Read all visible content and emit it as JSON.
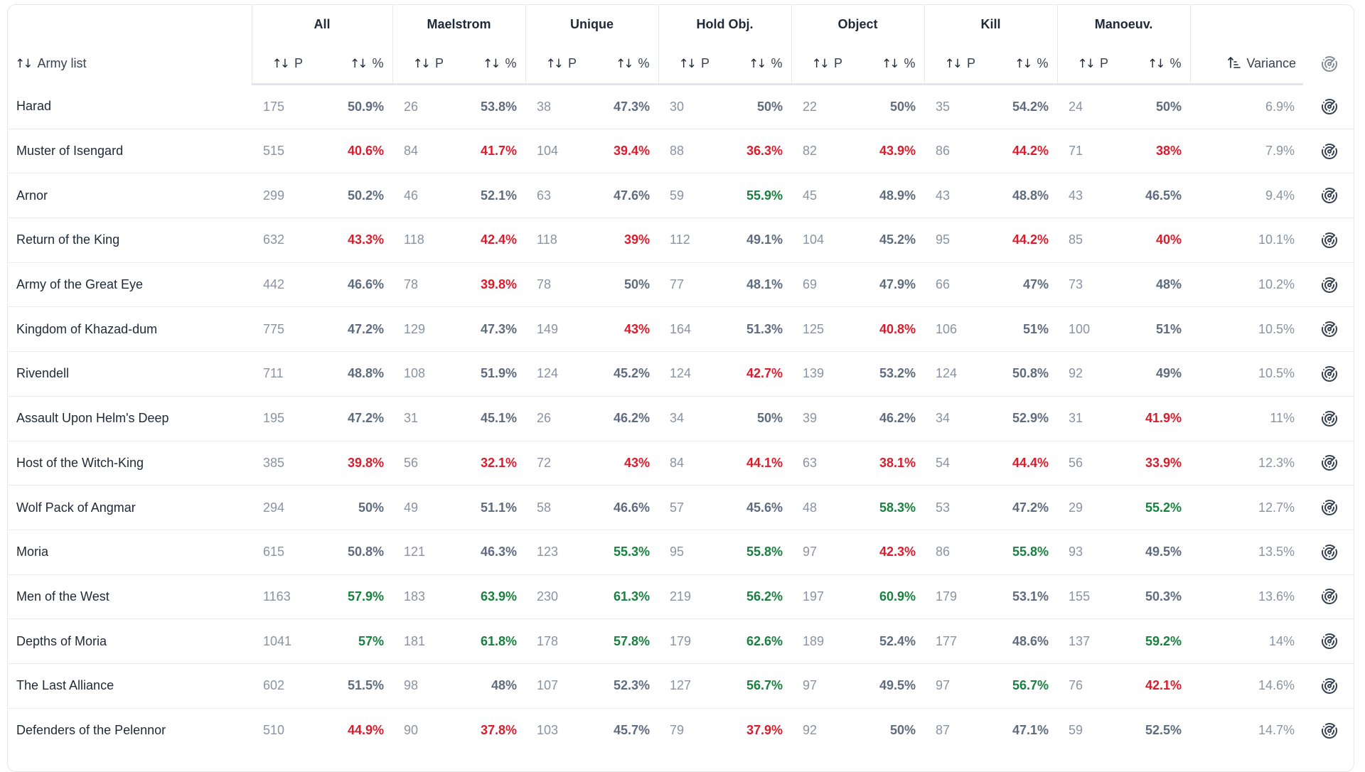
{
  "table": {
    "name_header": "Army list",
    "groups": [
      "All",
      "Maelstrom",
      "Unique",
      "Hold Obj.",
      "Object",
      "Kill",
      "Manoeuv."
    ],
    "sub_p_label": "P",
    "sub_pct_label": "%",
    "variance_header": "Variance",
    "icons": {
      "sort": "sort-arrows-icon",
      "sort_active": "sort-ascending-icon",
      "row_action": "radar-icon"
    },
    "colors": {
      "negative": "#dc1c2c",
      "positive": "#1a8040",
      "neutral": "#5f6b7e",
      "count": "#8a93a3"
    },
    "rows": [
      {
        "name": "Harad",
        "cells": [
          [
            "175",
            "50.9%",
            "n"
          ],
          [
            "26",
            "53.8%",
            "n"
          ],
          [
            "38",
            "47.3%",
            "n"
          ],
          [
            "30",
            "50%",
            "n"
          ],
          [
            "22",
            "50%",
            "n"
          ],
          [
            "35",
            "54.2%",
            "n"
          ],
          [
            "24",
            "50%",
            "n"
          ]
        ],
        "variance": "6.9%"
      },
      {
        "name": "Muster of Isengard",
        "cells": [
          [
            "515",
            "40.6%",
            "r"
          ],
          [
            "84",
            "41.7%",
            "r"
          ],
          [
            "104",
            "39.4%",
            "r"
          ],
          [
            "88",
            "36.3%",
            "r"
          ],
          [
            "82",
            "43.9%",
            "r"
          ],
          [
            "86",
            "44.2%",
            "r"
          ],
          [
            "71",
            "38%",
            "r"
          ]
        ],
        "variance": "7.9%"
      },
      {
        "name": "Arnor",
        "cells": [
          [
            "299",
            "50.2%",
            "n"
          ],
          [
            "46",
            "52.1%",
            "n"
          ],
          [
            "63",
            "47.6%",
            "n"
          ],
          [
            "59",
            "55.9%",
            "g"
          ],
          [
            "45",
            "48.9%",
            "n"
          ],
          [
            "43",
            "48.8%",
            "n"
          ],
          [
            "43",
            "46.5%",
            "n"
          ]
        ],
        "variance": "9.4%"
      },
      {
        "name": "Return of the King",
        "cells": [
          [
            "632",
            "43.3%",
            "r"
          ],
          [
            "118",
            "42.4%",
            "r"
          ],
          [
            "118",
            "39%",
            "r"
          ],
          [
            "112",
            "49.1%",
            "n"
          ],
          [
            "104",
            "45.2%",
            "n"
          ],
          [
            "95",
            "44.2%",
            "r"
          ],
          [
            "85",
            "40%",
            "r"
          ]
        ],
        "variance": "10.1%"
      },
      {
        "name": "Army of the Great Eye",
        "cells": [
          [
            "442",
            "46.6%",
            "n"
          ],
          [
            "78",
            "39.8%",
            "r"
          ],
          [
            "78",
            "50%",
            "n"
          ],
          [
            "77",
            "48.1%",
            "n"
          ],
          [
            "69",
            "47.9%",
            "n"
          ],
          [
            "66",
            "47%",
            "n"
          ],
          [
            "73",
            "48%",
            "n"
          ]
        ],
        "variance": "10.2%"
      },
      {
        "name": "Kingdom of Khazad-dum",
        "cells": [
          [
            "775",
            "47.2%",
            "n"
          ],
          [
            "129",
            "47.3%",
            "n"
          ],
          [
            "149",
            "43%",
            "r"
          ],
          [
            "164",
            "51.3%",
            "n"
          ],
          [
            "125",
            "40.8%",
            "r"
          ],
          [
            "106",
            "51%",
            "n"
          ],
          [
            "100",
            "51%",
            "n"
          ]
        ],
        "variance": "10.5%"
      },
      {
        "name": "Rivendell",
        "cells": [
          [
            "711",
            "48.8%",
            "n"
          ],
          [
            "108",
            "51.9%",
            "n"
          ],
          [
            "124",
            "45.2%",
            "n"
          ],
          [
            "124",
            "42.7%",
            "r"
          ],
          [
            "139",
            "53.2%",
            "n"
          ],
          [
            "124",
            "50.8%",
            "n"
          ],
          [
            "92",
            "49%",
            "n"
          ]
        ],
        "variance": "10.5%"
      },
      {
        "name": "Assault Upon Helm's Deep",
        "cells": [
          [
            "195",
            "47.2%",
            "n"
          ],
          [
            "31",
            "45.1%",
            "n"
          ],
          [
            "26",
            "46.2%",
            "n"
          ],
          [
            "34",
            "50%",
            "n"
          ],
          [
            "39",
            "46.2%",
            "n"
          ],
          [
            "34",
            "52.9%",
            "n"
          ],
          [
            "31",
            "41.9%",
            "r"
          ]
        ],
        "variance": "11%"
      },
      {
        "name": "Host of the Witch-King",
        "cells": [
          [
            "385",
            "39.8%",
            "r"
          ],
          [
            "56",
            "32.1%",
            "r"
          ],
          [
            "72",
            "43%",
            "r"
          ],
          [
            "84",
            "44.1%",
            "r"
          ],
          [
            "63",
            "38.1%",
            "r"
          ],
          [
            "54",
            "44.4%",
            "r"
          ],
          [
            "56",
            "33.9%",
            "r"
          ]
        ],
        "variance": "12.3%"
      },
      {
        "name": "Wolf Pack of Angmar",
        "cells": [
          [
            "294",
            "50%",
            "n"
          ],
          [
            "49",
            "51.1%",
            "n"
          ],
          [
            "58",
            "46.6%",
            "n"
          ],
          [
            "57",
            "45.6%",
            "n"
          ],
          [
            "48",
            "58.3%",
            "g"
          ],
          [
            "53",
            "47.2%",
            "n"
          ],
          [
            "29",
            "55.2%",
            "g"
          ]
        ],
        "variance": "12.7%"
      },
      {
        "name": "Moria",
        "cells": [
          [
            "615",
            "50.8%",
            "n"
          ],
          [
            "121",
            "46.3%",
            "n"
          ],
          [
            "123",
            "55.3%",
            "g"
          ],
          [
            "95",
            "55.8%",
            "g"
          ],
          [
            "97",
            "42.3%",
            "r"
          ],
          [
            "86",
            "55.8%",
            "g"
          ],
          [
            "93",
            "49.5%",
            "n"
          ]
        ],
        "variance": "13.5%"
      },
      {
        "name": "Men of the West",
        "cells": [
          [
            "1163",
            "57.9%",
            "g"
          ],
          [
            "183",
            "63.9%",
            "g"
          ],
          [
            "230",
            "61.3%",
            "g"
          ],
          [
            "219",
            "56.2%",
            "g"
          ],
          [
            "197",
            "60.9%",
            "g"
          ],
          [
            "179",
            "53.1%",
            "n"
          ],
          [
            "155",
            "50.3%",
            "n"
          ]
        ],
        "variance": "13.6%"
      },
      {
        "name": "Depths of Moria",
        "cells": [
          [
            "1041",
            "57%",
            "g"
          ],
          [
            "181",
            "61.8%",
            "g"
          ],
          [
            "178",
            "57.8%",
            "g"
          ],
          [
            "179",
            "62.6%",
            "g"
          ],
          [
            "189",
            "52.4%",
            "n"
          ],
          [
            "177",
            "48.6%",
            "n"
          ],
          [
            "137",
            "59.2%",
            "g"
          ]
        ],
        "variance": "14%"
      },
      {
        "name": "The Last Alliance",
        "cells": [
          [
            "602",
            "51.5%",
            "n"
          ],
          [
            "98",
            "48%",
            "n"
          ],
          [
            "107",
            "52.3%",
            "n"
          ],
          [
            "127",
            "56.7%",
            "g"
          ],
          [
            "97",
            "49.5%",
            "n"
          ],
          [
            "97",
            "56.7%",
            "g"
          ],
          [
            "76",
            "42.1%",
            "r"
          ]
        ],
        "variance": "14.6%"
      },
      {
        "name": "Defenders of the Pelennor",
        "cells": [
          [
            "510",
            "44.9%",
            "r"
          ],
          [
            "90",
            "37.8%",
            "r"
          ],
          [
            "103",
            "45.7%",
            "n"
          ],
          [
            "79",
            "37.9%",
            "r"
          ],
          [
            "92",
            "50%",
            "n"
          ],
          [
            "87",
            "47.1%",
            "n"
          ],
          [
            "59",
            "52.5%",
            "n"
          ]
        ],
        "variance": "14.7%"
      }
    ]
  }
}
